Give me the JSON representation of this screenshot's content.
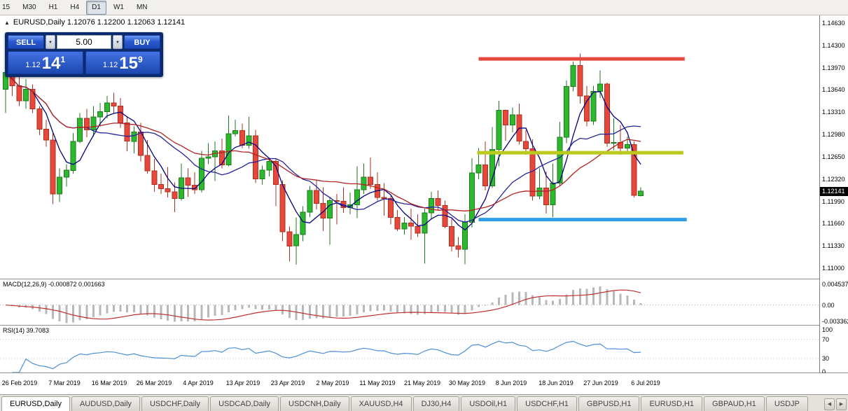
{
  "toolbar": {
    "timeframes": [
      {
        "label": "15",
        "active": false
      },
      {
        "label": "M30",
        "active": false
      },
      {
        "label": "H1",
        "active": false
      },
      {
        "label": "H4",
        "active": false
      },
      {
        "label": "D1",
        "active": true
      },
      {
        "label": "W1",
        "active": false
      },
      {
        "label": "MN",
        "active": false
      }
    ]
  },
  "chart_header": {
    "expander": "▲",
    "title": "EURUSD,Daily 1.12076 1.12200 1.12063 1.12141"
  },
  "trade_panel": {
    "sell_label": "SELL",
    "buy_label": "BUY",
    "volume": "5.00",
    "dropdown_glyph": "▼",
    "bid": {
      "small": "1.12",
      "big": "14",
      "sup": "1"
    },
    "ask": {
      "small": "1.12",
      "big": "15",
      "sup": "9"
    }
  },
  "price_axis": {
    "labels": [
      "1.14630",
      "1.14300",
      "1.13970",
      "1.13640",
      "1.13310",
      "1.12980",
      "1.12650",
      "1.12320",
      "1.11990",
      "1.11660",
      "1.11330",
      "1.11000"
    ],
    "current_price": "1.12141"
  },
  "macd_panel": {
    "label": "MACD(12,26,9) -0.000872 0.001663",
    "axis_labels": [
      "0.004537",
      "0.00",
      "-0.003362"
    ]
  },
  "rsi_panel": {
    "label": "RSI(14) 39.7083",
    "axis_labels": [
      "100",
      "70",
      "30",
      "0"
    ]
  },
  "date_axis": {
    "labels": [
      "26 Feb 2019",
      "7 Mar 2019",
      "16 Mar 2019",
      "26 Mar 2019",
      "4 Apr 2019",
      "13 Apr 2019",
      "23 Apr 2019",
      "2 May 2019",
      "11 May 2019",
      "21 May 2019",
      "30 May 2019",
      "8 Jun 2019",
      "18 Jun 2019",
      "27 Jun 2019",
      "6 Jul 2019"
    ]
  },
  "tabs": {
    "scroll_left": "◀",
    "scroll_right": "▶",
    "items": [
      {
        "label": "EURUSD,Daily",
        "active": true
      },
      {
        "label": "AUDUSD,Daily",
        "active": false
      },
      {
        "label": "USDCHF,Daily",
        "active": false
      },
      {
        "label": "USDCAD,Daily",
        "active": false
      },
      {
        "label": "USDCNH,Daily",
        "active": false
      },
      {
        "label": "XAUUSD,H4",
        "active": false
      },
      {
        "label": "DJ30,H4",
        "active": false
      },
      {
        "label": "USDOil,H1",
        "active": false
      },
      {
        "label": "USDCHF,H1",
        "active": false
      },
      {
        "label": "GBPUSD,H1",
        "active": false
      },
      {
        "label": "EURUSD,H1",
        "active": false
      },
      {
        "label": "GBPAUD,H1",
        "active": false
      },
      {
        "label": "USDJP",
        "active": false
      }
    ]
  },
  "chart_data": {
    "type": "candlestick",
    "symbol": "EURUSD",
    "timeframe": "Daily",
    "ohlc_current": {
      "open": 1.12076,
      "high": 1.122,
      "low": 1.12063,
      "close": 1.12141
    },
    "ylim": [
      1.10845,
      1.14744
    ],
    "style": {
      "bull_fill": "#2db92d",
      "bull_stroke": "#1d7a1d",
      "bear_fill": "#e8483c",
      "bear_stroke": "#a8321f"
    },
    "moving_averages": [
      {
        "period": 5,
        "type": "sma",
        "color": "#000080"
      },
      {
        "period": 13,
        "type": "sma",
        "color": "#24249c"
      },
      {
        "period": 24,
        "type": "sma",
        "color": "#b22222"
      }
    ],
    "hlines": [
      {
        "name": "resistance-line",
        "price": 1.141,
        "color": "#e8493e",
        "width": 5,
        "from_index": 70,
        "to_index": 100.5
      },
      {
        "name": "mid-line",
        "price": 1.1271,
        "color": "#bcca1e",
        "width": 5,
        "from_index": 69.8,
        "to_index": 100.3
      },
      {
        "name": "support-line",
        "price": 1.1172,
        "color": "#2e9be6",
        "width": 5,
        "from_index": 70,
        "to_index": 100.8
      }
    ],
    "candles": [
      [
        1.1365,
        1.14,
        1.133,
        1.139
      ],
      [
        1.139,
        1.1405,
        1.1355,
        1.137
      ],
      [
        1.137,
        1.1398,
        1.134,
        1.1348
      ],
      [
        1.1348,
        1.138,
        1.1336,
        1.1365
      ],
      [
        1.1365,
        1.1372,
        1.133,
        1.1336
      ],
      [
        1.1336,
        1.134,
        1.1297,
        1.1306
      ],
      [
        1.1306,
        1.132,
        1.128,
        1.129
      ],
      [
        1.129,
        1.13,
        1.1195,
        1.121
      ],
      [
        1.121,
        1.1248,
        1.1198,
        1.1235
      ],
      [
        1.1235,
        1.1254,
        1.1221,
        1.1245
      ],
      [
        1.1245,
        1.13,
        1.124,
        1.1288
      ],
      [
        1.1288,
        1.133,
        1.1285,
        1.1322
      ],
      [
        1.1322,
        1.1336,
        1.1294,
        1.1305
      ],
      [
        1.1305,
        1.134,
        1.1295,
        1.1324
      ],
      [
        1.1324,
        1.1345,
        1.131,
        1.1332
      ],
      [
        1.1332,
        1.1355,
        1.1322,
        1.1345
      ],
      [
        1.1345,
        1.136,
        1.133,
        1.134
      ],
      [
        1.134,
        1.1352,
        1.1308,
        1.1315
      ],
      [
        1.1315,
        1.1325,
        1.1273,
        1.1288
      ],
      [
        1.1288,
        1.131,
        1.127,
        1.1302
      ],
      [
        1.1302,
        1.1315,
        1.1258,
        1.1267
      ],
      [
        1.1267,
        1.129,
        1.124,
        1.1244
      ],
      [
        1.1244,
        1.1262,
        1.1213,
        1.1224
      ],
      [
        1.1224,
        1.124,
        1.121,
        1.1218
      ],
      [
        1.1218,
        1.125,
        1.1205,
        1.1213
      ],
      [
        1.1213,
        1.1227,
        1.1183,
        1.1203
      ],
      [
        1.1203,
        1.1255,
        1.12,
        1.1234
      ],
      [
        1.1234,
        1.1248,
        1.1206,
        1.1223
      ],
      [
        1.1223,
        1.1242,
        1.121,
        1.1216
      ],
      [
        1.1216,
        1.1274,
        1.1212,
        1.1263
      ],
      [
        1.1263,
        1.1285,
        1.1254,
        1.1265
      ],
      [
        1.1265,
        1.1288,
        1.1229,
        1.1274
      ],
      [
        1.1274,
        1.1292,
        1.1248,
        1.1253
      ],
      [
        1.1253,
        1.1326,
        1.1251,
        1.1299
      ],
      [
        1.1299,
        1.132,
        1.1295,
        1.1304
      ],
      [
        1.1304,
        1.1314,
        1.1278,
        1.1282
      ],
      [
        1.1282,
        1.1324,
        1.1277,
        1.1296
      ],
      [
        1.1296,
        1.1305,
        1.1226,
        1.1232
      ],
      [
        1.1232,
        1.1252,
        1.1224,
        1.1245
      ],
      [
        1.1245,
        1.1264,
        1.1236,
        1.1258
      ],
      [
        1.1258,
        1.1262,
        1.1192,
        1.1224
      ],
      [
        1.1224,
        1.123,
        1.114,
        1.1154
      ],
      [
        1.1154,
        1.1162,
        1.111,
        1.1133
      ],
      [
        1.1133,
        1.1175,
        1.1105,
        1.115
      ],
      [
        1.115,
        1.1192,
        1.114,
        1.1183
      ],
      [
        1.1183,
        1.1222,
        1.1176,
        1.1215
      ],
      [
        1.1215,
        1.123,
        1.1187,
        1.1196
      ],
      [
        1.1196,
        1.122,
        1.1155,
        1.1174
      ],
      [
        1.1174,
        1.1206,
        1.1135,
        1.12
      ],
      [
        1.12,
        1.121,
        1.1165,
        1.1199
      ],
      [
        1.1199,
        1.122,
        1.1182,
        1.119
      ],
      [
        1.119,
        1.1212,
        1.118,
        1.1194
      ],
      [
        1.1194,
        1.1251,
        1.1174,
        1.1216
      ],
      [
        1.1216,
        1.1255,
        1.121,
        1.1235
      ],
      [
        1.1235,
        1.1264,
        1.1218,
        1.1224
      ],
      [
        1.1224,
        1.1242,
        1.12,
        1.1205
      ],
      [
        1.1205,
        1.1226,
        1.1178,
        1.1203
      ],
      [
        1.1203,
        1.1207,
        1.1165,
        1.1175
      ],
      [
        1.1175,
        1.1186,
        1.1155,
        1.1158
      ],
      [
        1.1158,
        1.1176,
        1.115,
        1.1167
      ],
      [
        1.1167,
        1.1188,
        1.1142,
        1.1162
      ],
      [
        1.1162,
        1.118,
        1.1146,
        1.1152
      ],
      [
        1.1152,
        1.1188,
        1.1107,
        1.1182
      ],
      [
        1.1182,
        1.1213,
        1.1172,
        1.1203
      ],
      [
        1.1203,
        1.1215,
        1.1186,
        1.1193
      ],
      [
        1.1193,
        1.12,
        1.1159,
        1.1162
      ],
      [
        1.1162,
        1.1173,
        1.1125,
        1.1133
      ],
      [
        1.1133,
        1.1146,
        1.1116,
        1.1128
      ],
      [
        1.1128,
        1.118,
        1.1106,
        1.1168
      ],
      [
        1.1168,
        1.1263,
        1.116,
        1.1241
      ],
      [
        1.1241,
        1.1278,
        1.1232,
        1.1253
      ],
      [
        1.1253,
        1.1288,
        1.1215,
        1.1222
      ],
      [
        1.1222,
        1.1309,
        1.1219,
        1.1276
      ],
      [
        1.1276,
        1.1348,
        1.1251,
        1.1334
      ],
      [
        1.1334,
        1.1335,
        1.1289,
        1.1312
      ],
      [
        1.1312,
        1.1338,
        1.1301,
        1.1327
      ],
      [
        1.1327,
        1.1344,
        1.1283,
        1.1288
      ],
      [
        1.1288,
        1.1305,
        1.1268,
        1.1277
      ],
      [
        1.1277,
        1.1291,
        1.12,
        1.1207
      ],
      [
        1.1207,
        1.1248,
        1.1202,
        1.1219
      ],
      [
        1.1219,
        1.1243,
        1.1181,
        1.1194
      ],
      [
        1.1194,
        1.1255,
        1.1176,
        1.1226
      ],
      [
        1.1226,
        1.1317,
        1.1222,
        1.1294
      ],
      [
        1.1294,
        1.1378,
        1.1285,
        1.1369
      ],
      [
        1.1369,
        1.1406,
        1.1362,
        1.14
      ],
      [
        1.14,
        1.1418,
        1.1344,
        1.1355
      ],
      [
        1.1355,
        1.137,
        1.131,
        1.1318
      ],
      [
        1.1318,
        1.137,
        1.1312,
        1.1362
      ],
      [
        1.1362,
        1.1393,
        1.1352,
        1.1373
      ],
      [
        1.1373,
        1.1375,
        1.128,
        1.1285
      ],
      [
        1.1285,
        1.1322,
        1.1275,
        1.1286
      ],
      [
        1.1286,
        1.1312,
        1.1268,
        1.1278
      ],
      [
        1.1278,
        1.1295,
        1.127,
        1.1283
      ],
      [
        1.1283,
        1.1288,
        1.1205,
        1.1208
      ],
      [
        1.12076,
        1.122,
        1.12063,
        1.12141
      ]
    ],
    "macd": {
      "fast": 12,
      "slow": 26,
      "signal": 9,
      "ylim": [
        -0.004,
        0.0052
      ],
      "histogram_color": "#b8b8b8",
      "signal_color": "#c03030"
    },
    "rsi": {
      "period": 14,
      "current": 39.7083,
      "levels": [
        70,
        30
      ],
      "color": "#4a90d9",
      "ylim": [
        0,
        100
      ]
    }
  }
}
